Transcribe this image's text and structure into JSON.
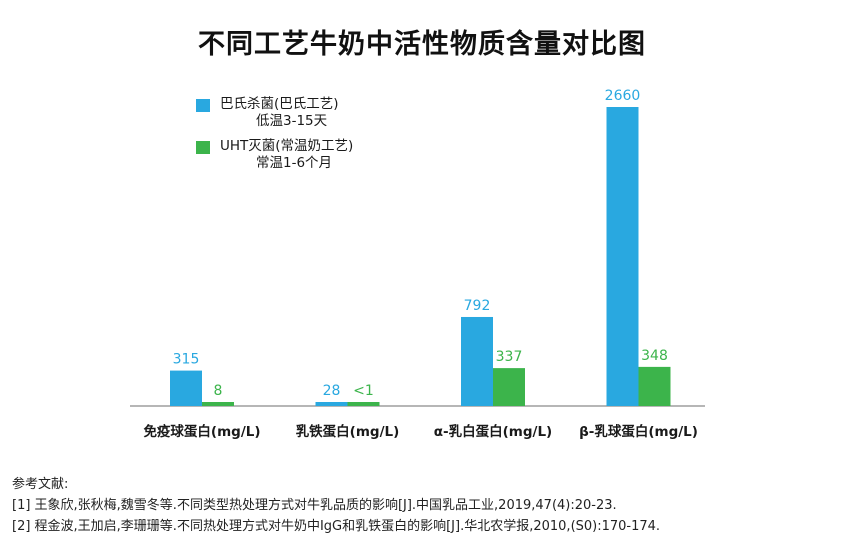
{
  "chart_data": {
    "type": "bar",
    "title": "不同工艺牛奶中活性物质含量对比图",
    "categories": [
      "免疫球蛋白(mg/L)",
      "乳铁蛋白(mg/L)",
      "α-乳白蛋白(mg/L)",
      "β-乳球蛋白(mg/L)"
    ],
    "series": [
      {
        "name": "巴氏杀菌(巴氏工艺)",
        "subname": "低温3-15天",
        "color": "#29a8e0",
        "values": [
          315,
          28,
          792,
          2660
        ],
        "labels": [
          "315",
          "28",
          "792",
          "2660"
        ]
      },
      {
        "name": "UHT灭菌(常温奶工艺)",
        "subname": "常温1-6个月",
        "color": "#3cb44b",
        "values": [
          8,
          1,
          337,
          348
        ],
        "labels": [
          "8",
          "<1",
          "337",
          "348"
        ]
      }
    ],
    "ylim": [
      0,
      2660
    ],
    "grid": false,
    "legend_position": "top-left",
    "xlabel": "",
    "ylabel": ""
  },
  "references": {
    "heading": "参考文献:",
    "items": [
      "[1] 王象欣,张秋梅,魏雪冬等.不同类型热处理方式对牛乳品质的影响[J].中国乳品工业,2019,47(4):20-23.",
      "[2] 程金波,王加启,李珊珊等.不同热处理方式对牛奶中IgG和乳铁蛋白的影响[J].华北农学报,2010,(S0):170-174."
    ]
  }
}
